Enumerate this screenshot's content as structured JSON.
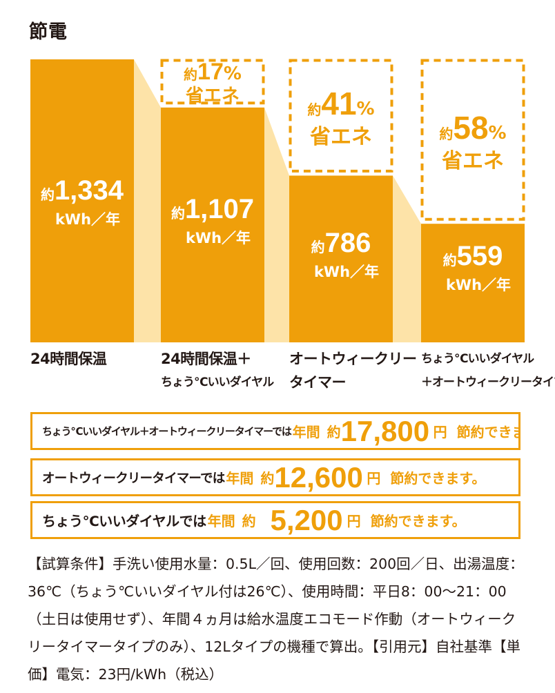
{
  "title": "節電",
  "colors": {
    "accent": "#ef9f0a",
    "connector": "#fde3a8",
    "text": "#231815",
    "white": "#ffffff"
  },
  "chart_data": {
    "type": "bar",
    "title": "節電",
    "unit": "kWh／年",
    "prefix": "約",
    "categories": [
      [
        "24時間保温"
      ],
      [
        "24時間保温＋",
        "ちょう℃いいダイヤル"
      ],
      [
        "オートウィークリー",
        "タイマー"
      ],
      [
        "ちょう℃いいダイヤル",
        "＋オートウィークリータイマー"
      ]
    ],
    "values": [
      1334,
      1107,
      786,
      559
    ],
    "value_labels": [
      "1,334",
      "1,107",
      "786",
      "559"
    ],
    "ylim": [
      0,
      1334
    ],
    "savings": [
      null,
      {
        "prefix": "約",
        "value": "17",
        "unit": "%",
        "label": "省エネ"
      },
      {
        "prefix": "約",
        "value": "41",
        "unit": "%",
        "label": "省エネ"
      },
      {
        "prefix": "約",
        "value": "58",
        "unit": "%",
        "label": "省エネ"
      }
    ]
  },
  "annual_savings": [
    {
      "condition": "ちょう℃いいダイヤル＋オートウィークリータイマーでは",
      "per_year": "年間",
      "approx": "約",
      "amount": "17,800",
      "yen": "円",
      "suffix": "節約できます。"
    },
    {
      "condition": "オートウィークリータイマーでは",
      "per_year": "年間",
      "approx": "約",
      "amount": "12,600",
      "yen": "円",
      "suffix": "節約できます。"
    },
    {
      "condition": "ちょう℃いいダイヤルでは",
      "per_year": "年間",
      "approx": "約",
      "amount": "5,200",
      "yen": "円",
      "suffix": "節約できます。"
    }
  ],
  "conditions_text": "【試算条件】手洗い使用水量：0.5L／回、使用回数：200回／日、出湯温度：36℃（ちょう℃いいダイヤル付は26℃）、使用時間：平日8：00～21：00（土日は使用せず）、年間４ヵ月は給水温度エコモード作動（オートウィークリータイマータイプのみ）、12Lタイプの機種で算出。【引用元】自社基準【単価】電気：23円/kWh（税込）"
}
